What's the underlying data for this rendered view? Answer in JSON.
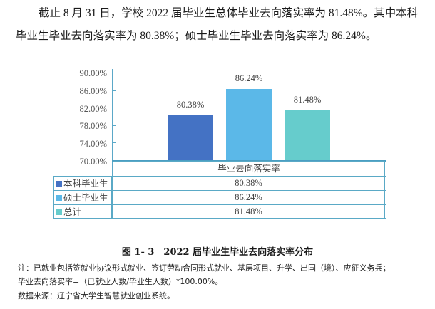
{
  "text": {
    "paragraph_line1": "截止 8 月 31 日，学校 2022 届毕业生总体毕业去向落实率为 81.48%。其中本科",
    "paragraph_line2": "毕业生毕业去向落实率为 80.38%；硕士毕业生毕业去向落实率为 86.24%。"
  },
  "figure": {
    "caption": "图 1- 3　2022 届毕业生毕业去向落实率分布",
    "notes": [
      "注：已就业包括签就业协议形式就业、签订劳动合同形式就业、基层项目、升学、出国（境）、应征义务兵；",
      "毕业去向落实率=（已就业人数/毕业生人数）*100.00%。",
      "数据来源：辽宁省大学生智慧就业创业系统。"
    ]
  },
  "chart_data": {
    "type": "bar",
    "title": "2022 届毕业生毕业去向落实率分布",
    "categories": [
      "毕业去向落实率"
    ],
    "series": [
      {
        "name": "本科毕业生",
        "values": [
          80.38
        ],
        "label": "80.38%",
        "color": "#4472c4"
      },
      {
        "name": "硕士毕业生",
        "values": [
          86.24
        ],
        "label": "86.24%",
        "color": "#5bb8e8"
      },
      {
        "name": "总计",
        "values": [
          81.48
        ],
        "label": "81.48%",
        "color": "#66cccc"
      }
    ],
    "xlabel": "毕业去向落实率",
    "ylabel": "",
    "ylim": [
      70,
      90
    ],
    "yticks": [
      "90.00%",
      "86.00%",
      "82.00%",
      "78.00%",
      "74.00%",
      "70.00%"
    ],
    "legend_position": "data-table below chart",
    "grid": false,
    "data_table": {
      "header": "毕业去向落实率",
      "rows": [
        {
          "legend": "本科毕业生",
          "value": "80.38%"
        },
        {
          "legend": "硕士毕业生",
          "value": "86.24%"
        },
        {
          "legend": "总计",
          "value": "81.48%"
        }
      ]
    }
  }
}
